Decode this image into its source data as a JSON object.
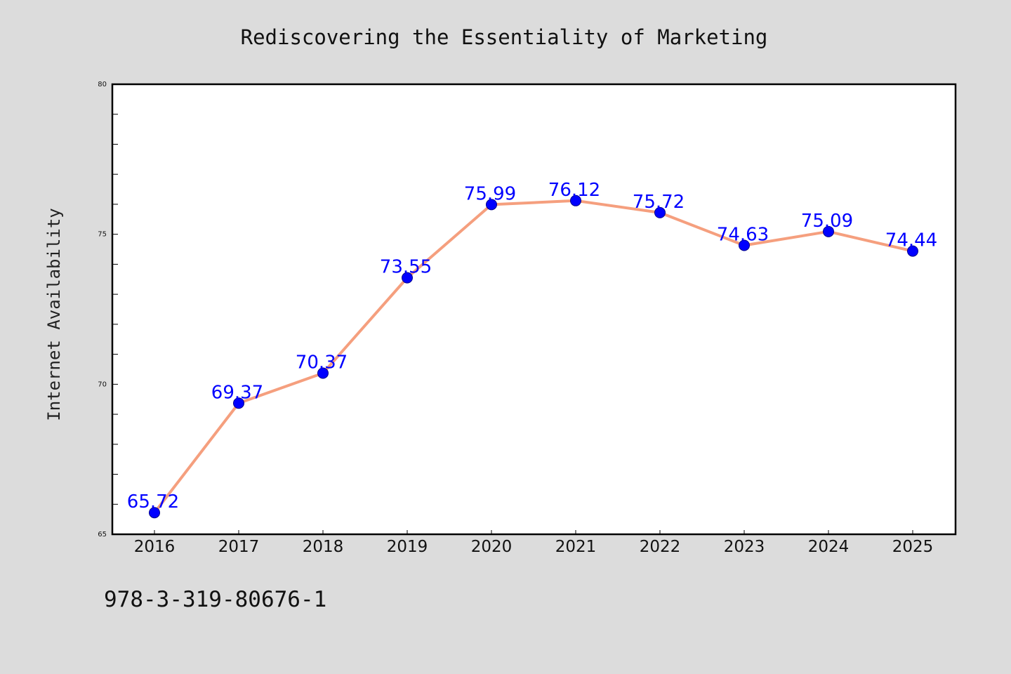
{
  "chart_data": {
    "type": "line",
    "title": "Rediscovering the Essentiality of Marketing",
    "xlabel": "",
    "ylabel": "Internet Availability",
    "categories": [
      "2016",
      "2017",
      "2018",
      "2019",
      "2020",
      "2021",
      "2022",
      "2023",
      "2024",
      "2025"
    ],
    "series": [
      {
        "values": [
          65.72,
          69.37,
          70.37,
          73.55,
          75.99,
          76.12,
          75.72,
          74.63,
          75.09,
          74.44
        ],
        "data_labels": [
          "65.72",
          "69.37",
          "70.37",
          "73.55",
          "75.99",
          "76.12",
          "75.72",
          "74.63",
          "75.09",
          "74.44"
        ]
      }
    ],
    "ylim": [
      65,
      80
    ],
    "yticks": [
      "65",
      "70",
      "75",
      "80"
    ],
    "grid": false,
    "line_color": "#f59f7e",
    "marker_color": "#0000ff",
    "label_color": "#0000ff",
    "background": "#dcdcdc",
    "plot_background": "#ffffff"
  },
  "footer": {
    "isbn": "978-3-319-80676-1"
  }
}
